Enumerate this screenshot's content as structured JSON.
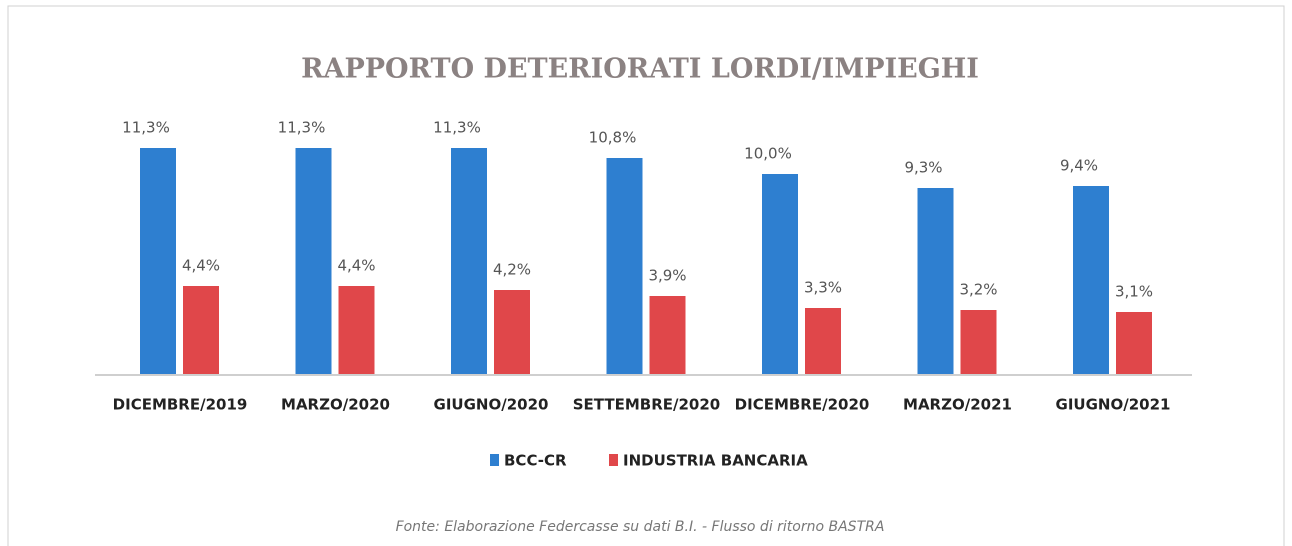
{
  "chart_data": {
    "type": "bar",
    "title": "RAPPORTO DETERIORATI LORDI/IMPIEGHI",
    "categories": [
      "DICEMBRE/2019",
      "MARZO/2020",
      "GIUGNO/2020",
      "SETTEMBRE/2020",
      "DICEMBRE/2020",
      "MARZO/2021",
      "GIUGNO/2021"
    ],
    "series": [
      {
        "name": "BCC-CR",
        "color": "#2e7fd0",
        "values": [
          11.3,
          11.3,
          11.3,
          10.8,
          10.0,
          9.3,
          9.4
        ],
        "value_labels": [
          "11,3%",
          "11,3%",
          "11,3%",
          "10,8%",
          "10,0%",
          "9,3%",
          "9,4%"
        ]
      },
      {
        "name": "INDUSTRIA BANCARIA",
        "color": "#e0474a",
        "values": [
          4.4,
          4.4,
          4.2,
          3.9,
          3.3,
          3.2,
          3.1
        ],
        "value_labels": [
          "4,4%",
          "4,4%",
          "4,2%",
          "3,9%",
          "3,3%",
          "3,2%",
          "3,1%"
        ]
      }
    ],
    "legend": "bottom",
    "source": "Fonte: Elaborazione Federcasse su dati B.I. - Flusso di ritorno BASTRA"
  }
}
